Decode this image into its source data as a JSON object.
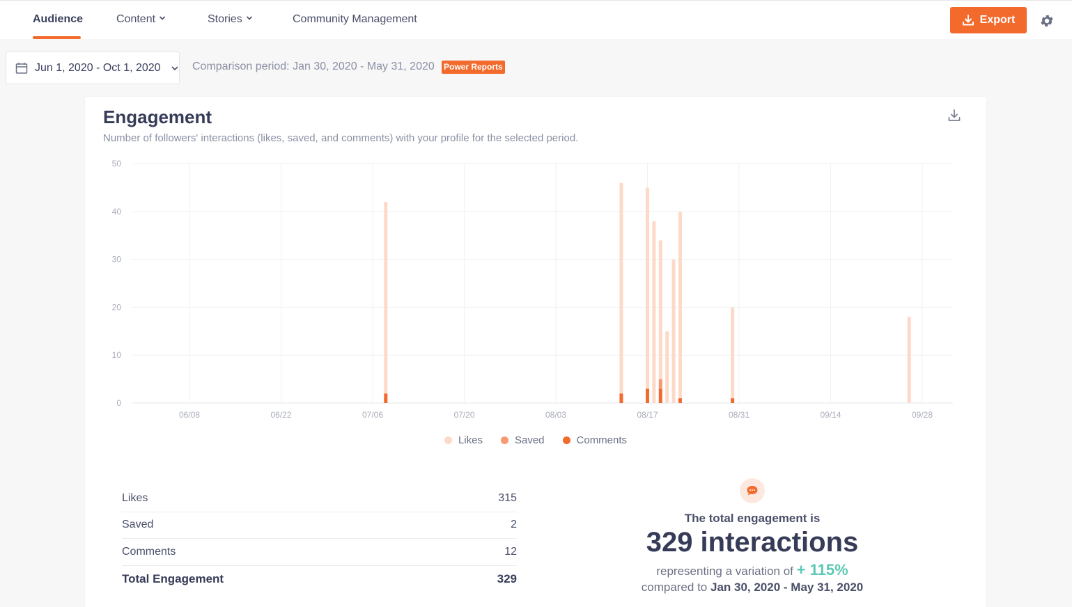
{
  "nav": {
    "tabs": [
      {
        "label": "Audience",
        "active": true
      },
      {
        "label": "Content",
        "dropdown": true
      },
      {
        "label": "Stories",
        "dropdown": true
      },
      {
        "label": "Community Management"
      }
    ],
    "export_label": "Export",
    "icons": {
      "export": "download-icon",
      "settings": "gear-icon"
    },
    "accent_color": "#f26a2c"
  },
  "filters": {
    "date_range": "Jun 1, 2020 - Oct 1, 2020",
    "comparison": "Comparison period: Jan 30, 2020 - May 31, 2020",
    "badge": "Power Reports"
  },
  "engagement": {
    "title": "Engagement",
    "subtitle": "Number of followers' interactions (likes, saved, and comments) with your profile for the selected period.",
    "legend": [
      {
        "label": "Likes",
        "color": "#fdd9c7"
      },
      {
        "label": "Saved",
        "color": "#f79a70"
      },
      {
        "label": "Comments",
        "color": "#f26a2c"
      }
    ],
    "summary": [
      {
        "label": "Likes",
        "value": "315"
      },
      {
        "label": "Saved",
        "value": "2"
      },
      {
        "label": "Comments",
        "value": "12"
      },
      {
        "label": "Total Engagement",
        "value": "329"
      }
    ],
    "total": {
      "lead": "The total engagement is",
      "value": "329 interactions",
      "variation_prefix": "representing a variation of",
      "variation": "+ 115%",
      "compared_prefix": "compared to",
      "compared_period": "Jan 30, 2020 - May 31, 2020"
    }
  },
  "chart_data": {
    "type": "bar",
    "stacked": true,
    "ylim": [
      0,
      50
    ],
    "yticks": [
      0,
      10,
      20,
      30,
      40,
      50
    ],
    "x_ticks": [
      "06/08",
      "06/22",
      "07/06",
      "07/20",
      "08/03",
      "08/17",
      "08/31",
      "09/14",
      "09/28"
    ],
    "x": [
      "07/08",
      "08/13",
      "08/17",
      "08/18",
      "08/19",
      "08/20",
      "08/21",
      "08/22",
      "08/30",
      "09/26"
    ],
    "series": [
      {
        "name": "Likes",
        "values": [
          40,
          44,
          42,
          38,
          29,
          15,
          30,
          39,
          19,
          18
        ]
      },
      {
        "name": "Saved",
        "values": [
          0,
          0,
          0,
          0,
          2,
          0,
          0,
          0,
          0,
          0
        ]
      },
      {
        "name": "Comments",
        "values": [
          2,
          2,
          3,
          0,
          3,
          0,
          0,
          1,
          1,
          0
        ]
      }
    ],
    "grid": true,
    "legend_position": "bottom"
  }
}
